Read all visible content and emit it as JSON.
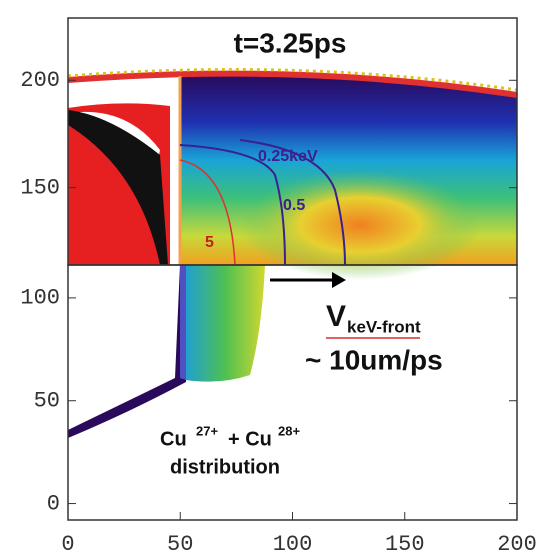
{
  "chart_data": [
    {
      "type": "heatmap",
      "title": "t=3.25ps",
      "xlim": [
        0,
        200
      ],
      "ylim": [
        114,
        229
      ],
      "yticks": [
        150,
        200
      ],
      "annotations": [
        "0.25keV",
        "0.5",
        "5"
      ]
    },
    {
      "type": "heatmap",
      "xlim": [
        0,
        200
      ],
      "xticks": [
        0,
        50,
        100,
        150,
        200
      ],
      "ylim": [
        -8,
        116
      ],
      "yticks": [
        0,
        50,
        100
      ],
      "annotations": [
        "V",
        "keV-front",
        "~ 10um/ps",
        "Cu",
        "27+",
        "+ Cu",
        "28+",
        "distribution"
      ]
    }
  ]
}
